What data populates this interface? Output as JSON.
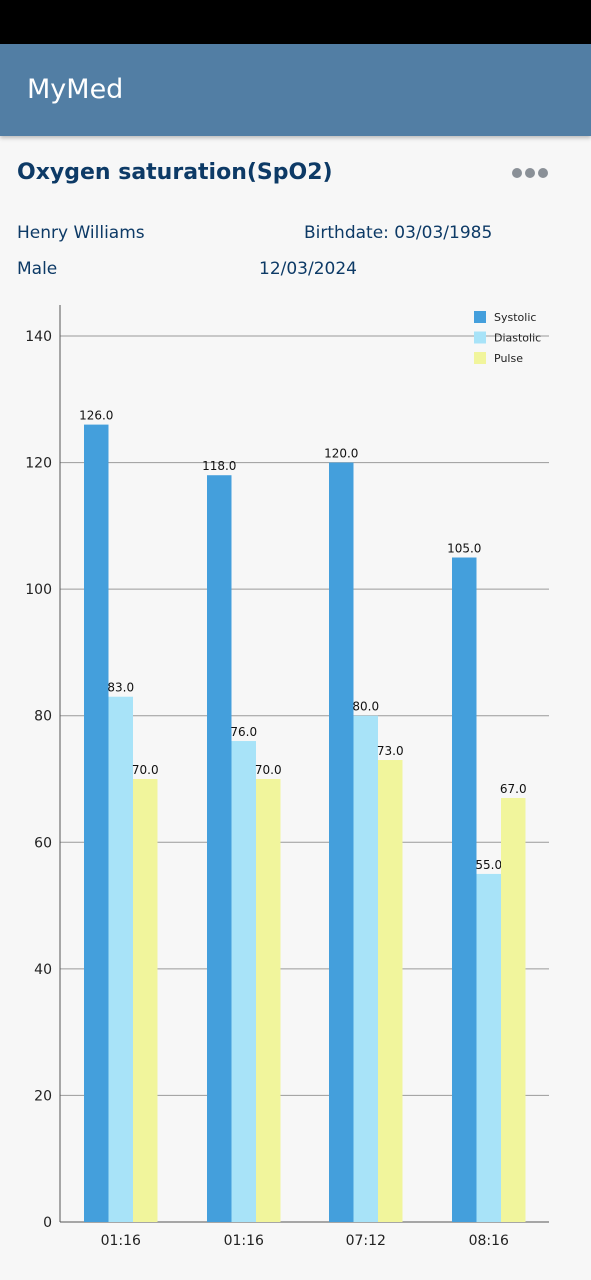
{
  "app": {
    "title": "MyMed"
  },
  "page": {
    "title": "Oxygen saturation(SpO2)",
    "more_icon": "more-horizontal-icon"
  },
  "patient": {
    "name": "Henry Williams",
    "birthdate": "Birthdate: 03/03/1985",
    "sex": "Male",
    "date": "12/03/2024"
  },
  "colors": {
    "app_bar": "#527ea4",
    "title": "#0d3a66",
    "systolic": "#449fdc",
    "diastolic": "#a8e3f8",
    "pulse": "#f1f59c"
  },
  "chart_data": {
    "type": "bar",
    "categories": [
      "01:16",
      "01:16",
      "07:12",
      "08:16"
    ],
    "series": [
      {
        "name": "Systolic",
        "values": [
          126,
          118,
          120,
          105
        ],
        "labels": [
          "126.0",
          "118.0",
          "120.0",
          "105.0"
        ],
        "color": "#449fdc"
      },
      {
        "name": "Diastolic",
        "values": [
          83,
          76,
          80,
          55
        ],
        "labels": [
          "83.0",
          "76.0",
          "80.0",
          "55.0"
        ],
        "color": "#a8e3f8"
      },
      {
        "name": "Pulse",
        "values": [
          70,
          70,
          73,
          67
        ],
        "labels": [
          "70.0",
          "70.0",
          "73.0",
          "67.0"
        ],
        "color": "#f1f59c"
      }
    ],
    "y_ticks": [
      "0",
      "20",
      "40",
      "60",
      "80",
      "100",
      "120",
      "140"
    ],
    "ylim": [
      0,
      140
    ],
    "grid": true,
    "legend_position": "top-right"
  }
}
